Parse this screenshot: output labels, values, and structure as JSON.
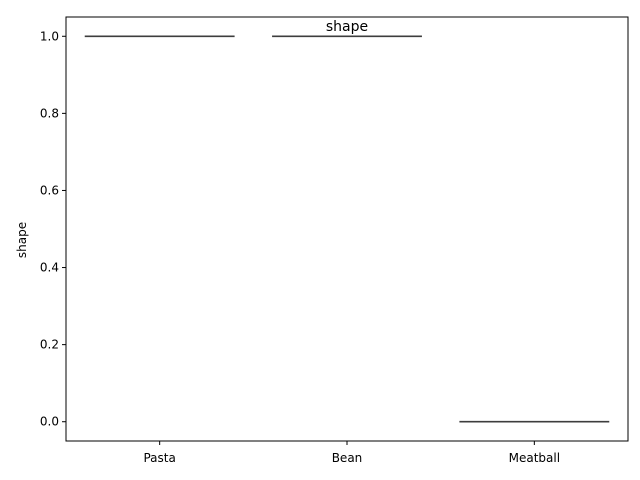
{
  "chart_data": {
    "type": "box",
    "title": "shape",
    "xlabel": "",
    "ylabel": "shape",
    "categories": [
      "Pasta",
      "Bean",
      "Meatball"
    ],
    "values": [
      1.0,
      1.0,
      0.0
    ],
    "ylim": [
      -0.05,
      1.05
    ],
    "yticks": [
      0.0,
      0.2,
      0.4,
      0.6,
      0.8,
      1.0
    ],
    "ytick_labels": [
      "0.0",
      "0.2",
      "0.4",
      "0.6",
      "0.8",
      "1.0"
    ],
    "grid": false,
    "line_color": "#3d3d3d",
    "axis_color": "#000000"
  }
}
